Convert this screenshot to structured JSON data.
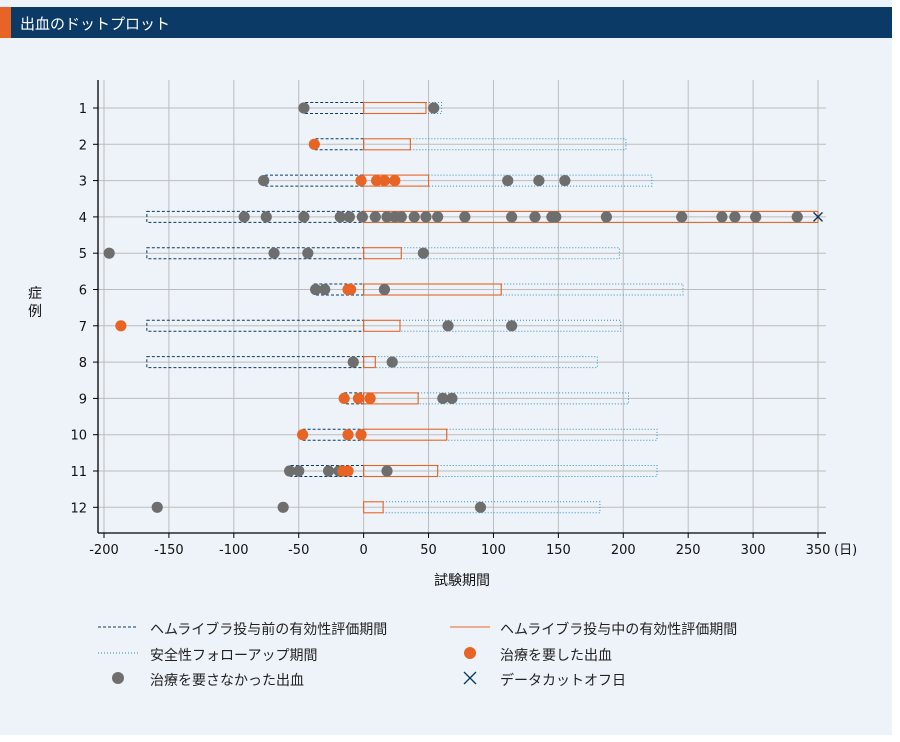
{
  "header": {
    "title": "出血のドットプロット"
  },
  "chart_data": {
    "type": "dot-timeline",
    "xlabel": "試験期間",
    "x_unit": "(日)",
    "ylabel": "症例",
    "xlim": [
      -200,
      350
    ],
    "x_ticks": [
      -200,
      -150,
      -100,
      -50,
      0,
      50,
      100,
      150,
      200,
      250,
      300,
      350
    ],
    "categories": [
      "1",
      "2",
      "3",
      "4",
      "5",
      "6",
      "7",
      "8",
      "9",
      "10",
      "11",
      "12"
    ],
    "grid": true,
    "colors": {
      "pre": "#0b3a66",
      "during": "#e86424",
      "safety": "#2a8fc0",
      "treated": "#e86424",
      "untreated": "#6e6e6e",
      "cutoff": "#0b3a66"
    },
    "cases": [
      {
        "case": "1",
        "pre": [
          -45,
          0
        ],
        "during": [
          0,
          48
        ],
        "safety": [
          48,
          60
        ],
        "untreated": [
          -46,
          54
        ],
        "treated": [],
        "cutoff": null
      },
      {
        "case": "2",
        "pre": [
          -37,
          0
        ],
        "during": [
          0,
          36
        ],
        "safety": [
          36,
          202
        ],
        "untreated": [],
        "treated": [
          -38
        ],
        "cutoff": null
      },
      {
        "case": "3",
        "pre": [
          -76,
          0
        ],
        "during": [
          0,
          50
        ],
        "safety": [
          50,
          222
        ],
        "untreated": [
          -77,
          111,
          135,
          155
        ],
        "treated": [
          -2,
          10,
          16,
          24
        ],
        "cutoff": null
      },
      {
        "case": "4",
        "pre": [
          -167,
          0
        ],
        "during": [
          0,
          350
        ],
        "safety": null,
        "untreated": [
          -92,
          -75,
          -46,
          -18,
          -11,
          -1,
          9,
          18,
          24,
          29,
          39,
          48,
          57,
          78,
          114,
          132,
          145,
          148,
          187,
          245,
          276,
          286,
          302,
          334
        ],
        "treated": [],
        "cutoff": 350
      },
      {
        "case": "5",
        "pre": [
          -167,
          0
        ],
        "during": [
          0,
          29
        ],
        "safety": [
          29,
          197
        ],
        "untreated": [
          -196,
          -69,
          -43,
          46
        ],
        "treated": [],
        "cutoff": null
      },
      {
        "case": "6",
        "pre": [
          -38,
          0
        ],
        "during": [
          0,
          106
        ],
        "safety": [
          106,
          246
        ],
        "untreated": [
          -37,
          -30,
          16
        ],
        "treated": [
          -12,
          -10
        ],
        "cutoff": null
      },
      {
        "case": "7",
        "pre": [
          -167,
          0
        ],
        "during": [
          0,
          28
        ],
        "safety": [
          28,
          198
        ],
        "untreated": [
          65,
          114
        ],
        "treated": [
          -187
        ],
        "cutoff": null
      },
      {
        "case": "8",
        "pre": [
          -167,
          0
        ],
        "during": [
          0,
          9
        ],
        "safety": [
          9,
          180
        ],
        "untreated": [
          -8,
          22
        ],
        "treated": [],
        "cutoff": null
      },
      {
        "case": "9",
        "pre": [
          -15,
          0
        ],
        "during": [
          0,
          42
        ],
        "safety": [
          42,
          204
        ],
        "untreated": [
          61,
          68
        ],
        "treated": [
          -15,
          -4,
          5
        ],
        "cutoff": null
      },
      {
        "case": "10",
        "pre": [
          -47,
          0
        ],
        "during": [
          0,
          64
        ],
        "safety": [
          64,
          226
        ],
        "untreated": [],
        "treated": [
          -47,
          -12,
          -2
        ],
        "cutoff": null
      },
      {
        "case": "11",
        "pre": [
          -56,
          0
        ],
        "during": [
          0,
          57
        ],
        "safety": [
          57,
          226
        ],
        "untreated": [
          -57,
          -50,
          -27,
          -19,
          18
        ],
        "treated": [
          -16,
          -12
        ],
        "cutoff": null
      },
      {
        "case": "12",
        "pre": null,
        "during": [
          0,
          15
        ],
        "safety": [
          15,
          182
        ],
        "untreated": [
          -159,
          -62,
          90
        ],
        "treated": [],
        "cutoff": null
      }
    ]
  },
  "legend": {
    "pre": "ヘムライブラ投与前の有効性評価期間",
    "during": "ヘムライブラ投与中の有効性評価期間",
    "safety": "安全性フォローアップ期間",
    "treated": "治療を要した出血",
    "untreated": "治療を要さなかった出血",
    "cutoff": "データカットオフ日"
  }
}
